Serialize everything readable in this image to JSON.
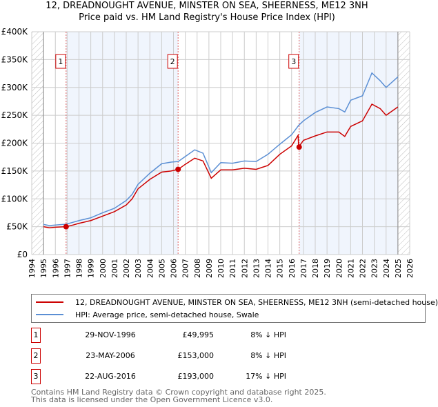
{
  "chart_data": {
    "type": "line",
    "title": "12, DREADNOUGHT AVENUE, MINSTER ON SEA, SHEERNESS, ME12 3NH",
    "subtitle": "Price paid vs. HM Land Registry's House Price Index (HPI)",
    "xlim": [
      1994,
      2026
    ],
    "ylim": [
      0,
      400000
    ],
    "x_ticks": [
      "1994",
      "1995",
      "1996",
      "1997",
      "1998",
      "1999",
      "2000",
      "2001",
      "2002",
      "2003",
      "2004",
      "2005",
      "2006",
      "2007",
      "2008",
      "2009",
      "2010",
      "2011",
      "2012",
      "2013",
      "2014",
      "2015",
      "2016",
      "2017",
      "2018",
      "2019",
      "2020",
      "2021",
      "2022",
      "2023",
      "2024",
      "2025",
      "2026"
    ],
    "y_ticks": [
      {
        "v": 0,
        "label": "£0"
      },
      {
        "v": 50000,
        "label": "£50K"
      },
      {
        "v": 100000,
        "label": "£100K"
      },
      {
        "v": 150000,
        "label": "£150K"
      },
      {
        "v": 200000,
        "label": "£200K"
      },
      {
        "v": 250000,
        "label": "£250K"
      },
      {
        "v": 300000,
        "label": "£300K"
      },
      {
        "v": 350000,
        "label": "£350K"
      },
      {
        "v": 400000,
        "label": "£400K"
      }
    ],
    "grid": true,
    "series": [
      {
        "name": "12, DREADNOUGHT AVENUE, MINSTER ON SEA, SHEERNESS, ME12 3NH (semi-detached house)",
        "color": "#cc0000",
        "x": [
          1995,
          1995.5,
          1996,
          1996.9,
          1997.5,
          1998,
          1999,
          2000,
          2001,
          2002,
          2002.5,
          2003,
          2004,
          2005,
          2005.8,
          2006.4,
          2007,
          2007.8,
          2008.5,
          2009.2,
          2010,
          2011,
          2012,
          2013,
          2014,
          2015,
          2016,
          2016.55,
          2016.6,
          2017,
          2018,
          2019,
          2020,
          2020.5,
          2021,
          2022,
          2022.8,
          2023.5,
          2024,
          2025
        ],
        "y": [
          50000,
          48000,
          49000,
          49995,
          53000,
          56000,
          61000,
          69000,
          77000,
          89000,
          100000,
          118000,
          135000,
          148000,
          150000,
          153000,
          162000,
          173000,
          168000,
          137000,
          152000,
          152000,
          155000,
          153000,
          160000,
          180000,
          195000,
          214000,
          193000,
          205000,
          213000,
          220000,
          220000,
          212000,
          230000,
          240000,
          270000,
          262000,
          250000,
          265000
        ]
      },
      {
        "name": "HPI: Average price, semi-detached house, Swale",
        "color": "#5b8fd4",
        "x": [
          1995,
          1995.5,
          1996,
          1996.9,
          1997.5,
          1998,
          1999,
          2000,
          2001,
          2002,
          2002.5,
          2003,
          2004,
          2005,
          2005.8,
          2006.4,
          2007,
          2007.8,
          2008.5,
          2009.2,
          2010,
          2011,
          2012,
          2013,
          2014,
          2015,
          2016,
          2016.6,
          2017,
          2018,
          2019,
          2020,
          2020.5,
          2021,
          2022,
          2022.8,
          2023.5,
          2024,
          2025
        ],
        "y": [
          54000,
          52000,
          53000,
          54500,
          58000,
          61000,
          66000,
          75000,
          83000,
          97000,
          108000,
          126000,
          146000,
          163000,
          166000,
          167000,
          176000,
          188000,
          182000,
          147000,
          165000,
          164000,
          168000,
          167000,
          180000,
          198000,
          215000,
          232000,
          240000,
          255000,
          265000,
          262000,
          256000,
          277000,
          285000,
          326000,
          312000,
          300000,
          319000
        ]
      }
    ],
    "sales": [
      {
        "n": "1",
        "x": 1996.91,
        "y": 49995,
        "date": "29-NOV-1996",
        "price": "£49,995",
        "hpi": "8% ↓ HPI"
      },
      {
        "n": "2",
        "x": 2006.39,
        "y": 153000,
        "date": "23-MAY-2006",
        "price": "£153,000",
        "hpi": "8% ↓ HPI"
      },
      {
        "n": "3",
        "x": 2016.64,
        "y": 193000,
        "date": "22-AUG-2016",
        "price": "£193,000",
        "hpi": "17% ↓ HPI"
      }
    ],
    "data_start": 1995,
    "data_end": 2025,
    "legend_position": "bottom"
  },
  "legend": {
    "red_label": "12, DREADNOUGHT AVENUE, MINSTER ON SEA, SHEERNESS, ME12 3NH (semi-detached house)",
    "blue_label": "HPI: Average price, semi-detached house, Swale"
  },
  "footer": {
    "line1": "Contains HM Land Registry data © Crown copyright and database right 2025.",
    "line2": "This data is licensed under the Open Government Licence v3.0."
  }
}
